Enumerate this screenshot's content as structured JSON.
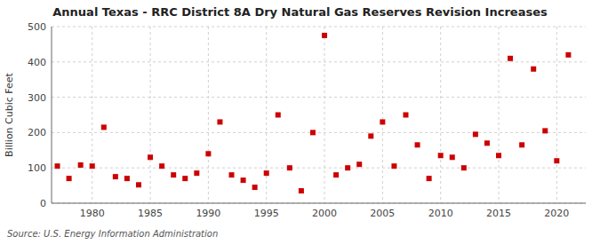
{
  "chart_data": {
    "type": "scatter",
    "title": "Annual Texas - RRC District 8A Dry Natural Gas Reserves Revision Increases",
    "y_label": "Billion Cubic Feet",
    "annotation": "Source: U.S. Energy Information Administration",
    "color": "#cc0000",
    "marker": "square",
    "grid": true,
    "xlim": [
      1976.5,
      2022.5
    ],
    "xticks": [
      1980,
      1985,
      1990,
      1995,
      2000,
      2005,
      2010,
      2015,
      2020
    ],
    "ylim": [
      0,
      500
    ],
    "yticks": [
      0,
      100,
      200,
      300,
      400,
      500
    ],
    "x": [
      1977,
      1978,
      1979,
      1980,
      1981,
      1982,
      1983,
      1984,
      1985,
      1986,
      1987,
      1988,
      1989,
      1990,
      1991,
      1992,
      1993,
      1994,
      1995,
      1996,
      1997,
      1998,
      1999,
      2000,
      2001,
      2002,
      2003,
      2004,
      2005,
      2006,
      2007,
      2008,
      2009,
      2010,
      2011,
      2012,
      2013,
      2014,
      2015,
      2016,
      2017,
      2018,
      2019,
      2020,
      2021
    ],
    "values": [
      105,
      70,
      108,
      105,
      215,
      75,
      70,
      52,
      130,
      105,
      80,
      70,
      85,
      140,
      230,
      80,
      65,
      45,
      85,
      250,
      100,
      35,
      200,
      475,
      80,
      100,
      110,
      190,
      230,
      105,
      250,
      165,
      70,
      135,
      130,
      100,
      195,
      170,
      135,
      410,
      165,
      380,
      205,
      120,
      420
    ]
  }
}
